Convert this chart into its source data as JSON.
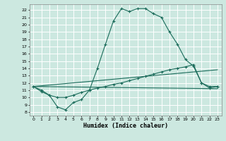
{
  "title": "",
  "xlabel": "Humidex (Indice chaleur)",
  "bg_color": "#cce8e0",
  "grid_color": "#ffffff",
  "line_color": "#1a6b5a",
  "xlim": [
    -0.5,
    23.5
  ],
  "ylim": [
    7.5,
    22.8
  ],
  "xticks": [
    0,
    1,
    2,
    3,
    4,
    5,
    6,
    7,
    8,
    9,
    10,
    11,
    12,
    13,
    14,
    15,
    16,
    17,
    18,
    19,
    20,
    21,
    22,
    23
  ],
  "yticks": [
    8,
    9,
    10,
    11,
    12,
    13,
    14,
    15,
    16,
    17,
    18,
    19,
    20,
    21,
    22
  ],
  "curve1_x": [
    0,
    1,
    2,
    3,
    4,
    5,
    6,
    7,
    8,
    9,
    10,
    11,
    12,
    13,
    14,
    15,
    16,
    17,
    18,
    19,
    20,
    21,
    22,
    23
  ],
  "curve1_y": [
    11.5,
    11.0,
    10.3,
    8.7,
    8.3,
    9.3,
    9.7,
    11.0,
    14.0,
    17.3,
    20.5,
    22.2,
    21.8,
    22.2,
    22.2,
    21.5,
    21.0,
    19.0,
    17.3,
    15.2,
    14.3,
    12.0,
    11.5,
    11.5
  ],
  "curve2_x": [
    0,
    1,
    2,
    3,
    4,
    5,
    6,
    7,
    8,
    9,
    10,
    11,
    12,
    13,
    14,
    15,
    16,
    17,
    18,
    19,
    20,
    21,
    22,
    23
  ],
  "curve2_y": [
    11.5,
    10.8,
    10.3,
    10.0,
    10.0,
    10.3,
    10.7,
    11.0,
    11.3,
    11.5,
    11.8,
    12.0,
    12.3,
    12.6,
    12.9,
    13.2,
    13.5,
    13.8,
    14.0,
    14.2,
    14.5,
    12.0,
    11.3,
    11.5
  ],
  "curve3_x": [
    0,
    23
  ],
  "curve3_y": [
    11.5,
    11.2
  ],
  "curve4_x": [
    0,
    23
  ],
  "curve4_y": [
    11.5,
    13.8
  ],
  "xlabel_fontsize": 6,
  "tick_fontsize": 4.5
}
